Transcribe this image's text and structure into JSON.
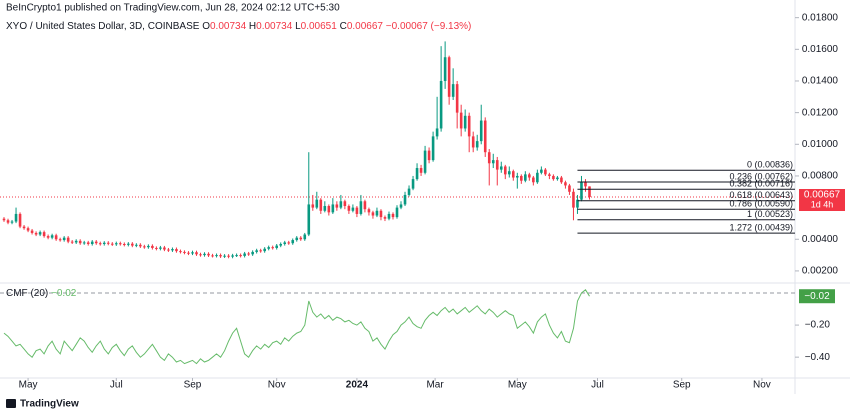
{
  "header": {
    "publisher": "BeInCrypto1 published on TradingView.com, Jun 28, 2024 02:12 UTC+5:30",
    "brand": "TradingView"
  },
  "chart_data": {
    "type": "candlestick",
    "title": "XYO / United States Dollar, 3D, COINBASE",
    "ohlc": [
      {
        "key": "O",
        "text": "0.00734"
      },
      {
        "key": "H",
        "text": "0.00734"
      },
      {
        "key": "L",
        "text": "0.00651"
      },
      {
        "key": "C",
        "text": "0.00667"
      }
    ],
    "change": "−0.00067 (−9.13%)",
    "up_color": "#089981",
    "down_color": "#f23645",
    "xlim": [
      -1,
      196
    ],
    "xticks": [
      {
        "value": 6,
        "label": "May"
      },
      {
        "value": 28,
        "label": "Jul"
      },
      {
        "value": 47,
        "label": "Sep"
      },
      {
        "value": 68,
        "label": "Nov"
      },
      {
        "value": 88,
        "label": "2024"
      },
      {
        "value": 107.5,
        "label": "Mar"
      },
      {
        "value": 128,
        "label": "May"
      },
      {
        "value": 148,
        "label": "Jul"
      },
      {
        "value": 169,
        "label": "Sep"
      },
      {
        "value": 189,
        "label": "Nov"
      }
    ],
    "ylim": [
      0.0013,
      0.0188
    ],
    "yticks": [
      {
        "value": 0.018,
        "label": "0.01800"
      },
      {
        "value": 0.016,
        "label": "0.01600"
      },
      {
        "value": 0.014,
        "label": "0.01400"
      },
      {
        "value": 0.012,
        "label": "0.01200"
      },
      {
        "value": 0.01,
        "label": "0.01000"
      },
      {
        "value": 0.008,
        "label": "0.00800"
      },
      {
        "value": 0.004,
        "label": "0.00400"
      },
      {
        "value": 0.002,
        "label": "0.00200"
      }
    ],
    "open": [
      0.0053,
      0.0052,
      0.00505,
      0.00512,
      0.0056,
      0.0048,
      0.0047,
      0.00455,
      0.0044,
      0.0043,
      0.00445,
      0.0042,
      0.0041,
      0.00425,
      0.004,
      0.00395,
      0.0041,
      0.00385,
      0.0038,
      0.0039,
      0.00375,
      0.0038,
      0.0037,
      0.00385,
      0.00375,
      0.0037,
      0.00378,
      0.00372,
      0.00368,
      0.00375,
      0.0037,
      0.00365,
      0.00372,
      0.0036,
      0.00365,
      0.00355,
      0.0035,
      0.00358,
      0.00345,
      0.0034,
      0.00348,
      0.00335,
      0.0033,
      0.00338,
      0.00325,
      0.0032,
      0.00315,
      0.0031,
      0.00318,
      0.00305,
      0.003,
      0.00308,
      0.00298,
      0.00295,
      0.003,
      0.00292,
      0.00296,
      0.0029,
      0.00298,
      0.003,
      0.00295,
      0.0031,
      0.00305,
      0.0032,
      0.0033,
      0.00325,
      0.0034,
      0.0035,
      0.00345,
      0.0036,
      0.0037,
      0.0038,
      0.00375,
      0.00395,
      0.0041,
      0.004,
      0.0043,
      0.0062,
      0.006,
      0.0065,
      0.0058,
      0.0061,
      0.0057,
      0.0062,
      0.006,
      0.0064,
      0.0061,
      0.0058,
      0.006,
      0.0056,
      0.0064,
      0.0059,
      0.0057,
      0.0055,
      0.0058,
      0.0054,
      0.0053,
      0.0056,
      0.0054,
      0.006,
      0.0062,
      0.0068,
      0.0072,
      0.0078,
      0.0085,
      0.0082,
      0.0096,
      0.009,
      0.0105,
      0.011,
      0.014,
      0.0155,
      0.013,
      0.0138,
      0.012,
      0.011,
      0.0118,
      0.0105,
      0.0098,
      0.0102,
      0.0115,
      0.0095,
      0.0088,
      0.009,
      0.0084,
      0.0086,
      0.0081,
      0.0083,
      0.0079,
      0.008,
      0.0077,
      0.0081,
      0.0079,
      0.0076,
      0.0082,
      0.0084,
      0.0081,
      0.008,
      0.0078,
      0.0079,
      0.0076,
      0.0074,
      0.007,
      0.006,
      0.0065,
      0.0076,
      0.00734
    ],
    "high": [
      0.0054,
      0.0053,
      0.00522,
      0.006,
      0.0057,
      0.0049,
      0.0048,
      0.00465,
      0.0045,
      0.00455,
      0.00455,
      0.0043,
      0.00435,
      0.00435,
      0.0041,
      0.0042,
      0.0042,
      0.00395,
      0.004,
      0.004,
      0.0039,
      0.0039,
      0.00395,
      0.00395,
      0.00385,
      0.00388,
      0.00388,
      0.00382,
      0.00385,
      0.00385,
      0.0038,
      0.00382,
      0.00382,
      0.00375,
      0.00375,
      0.00365,
      0.00368,
      0.00368,
      0.00355,
      0.00358,
      0.00358,
      0.00345,
      0.00348,
      0.00348,
      0.00335,
      0.0033,
      0.00325,
      0.00328,
      0.00328,
      0.00315,
      0.00318,
      0.00318,
      0.00308,
      0.0031,
      0.0031,
      0.00306,
      0.00306,
      0.00308,
      0.0031,
      0.0031,
      0.0032,
      0.0032,
      0.0033,
      0.0034,
      0.0034,
      0.0035,
      0.0036,
      0.0036,
      0.0037,
      0.0038,
      0.0039,
      0.0039,
      0.00405,
      0.0042,
      0.0042,
      0.0044,
      0.0095,
      0.0068,
      0.007,
      0.0066,
      0.0064,
      0.0062,
      0.0066,
      0.0064,
      0.0068,
      0.0065,
      0.0062,
      0.0062,
      0.0061,
      0.0068,
      0.0065,
      0.006,
      0.0058,
      0.006,
      0.0059,
      0.0055,
      0.00575,
      0.0057,
      0.00615,
      0.0064,
      0.007,
      0.0074,
      0.008,
      0.0088,
      0.0087,
      0.0099,
      0.0098,
      0.0108,
      0.013,
      0.0162,
      0.0165,
      0.0156,
      0.0148,
      0.014,
      0.0125,
      0.0122,
      0.012,
      0.0108,
      0.0106,
      0.0125,
      0.0117,
      0.0097,
      0.0094,
      0.0092,
      0.0089,
      0.0087,
      0.0086,
      0.0084,
      0.0082,
      0.0081,
      0.0083,
      0.0082,
      0.008,
      0.0084,
      0.0086,
      0.0085,
      0.0082,
      0.0081,
      0.008,
      0.008,
      0.0077,
      0.0075,
      0.0072,
      0.0068,
      0.008,
      0.0078,
      0.00734
    ],
    "low": [
      0.0051,
      0.00495,
      0.00495,
      0.00502,
      0.0047,
      0.0046,
      0.00445,
      0.0043,
      0.0042,
      0.0042,
      0.0041,
      0.004,
      0.004,
      0.0039,
      0.00385,
      0.00385,
      0.00375,
      0.0037,
      0.0037,
      0.00365,
      0.00365,
      0.0036,
      0.0036,
      0.00365,
      0.0036,
      0.0036,
      0.00362,
      0.00358,
      0.00358,
      0.0036,
      0.00355,
      0.00355,
      0.0035,
      0.0035,
      0.00345,
      0.0034,
      0.0034,
      0.00335,
      0.0033,
      0.0033,
      0.00325,
      0.0032,
      0.0032,
      0.00315,
      0.0031,
      0.00305,
      0.003,
      0.003,
      0.00295,
      0.0029,
      0.0029,
      0.00288,
      0.00285,
      0.00285,
      0.00282,
      0.00282,
      0.0028,
      0.0028,
      0.00288,
      0.00285,
      0.00285,
      0.00295,
      0.00295,
      0.0031,
      0.00315,
      0.00315,
      0.0033,
      0.00335,
      0.00335,
      0.0035,
      0.0036,
      0.00365,
      0.00365,
      0.00385,
      0.0039,
      0.0039,
      0.0042,
      0.0058,
      0.0059,
      0.0056,
      0.0057,
      0.0055,
      0.0056,
      0.0058,
      0.0059,
      0.0059,
      0.0056,
      0.0057,
      0.0054,
      0.0055,
      0.0057,
      0.0055,
      0.0053,
      0.0054,
      0.0052,
      0.00515,
      0.0052,
      0.00525,
      0.0053,
      0.0059,
      0.0061,
      0.0067,
      0.0071,
      0.0077,
      0.008,
      0.0081,
      0.0088,
      0.0089,
      0.0103,
      0.0108,
      0.0135,
      0.0125,
      0.0128,
      0.011,
      0.0105,
      0.0108,
      0.0095,
      0.0095,
      0.0096,
      0.01,
      0.0092,
      0.0074,
      0.0085,
      0.0074,
      0.0082,
      0.0078,
      0.0079,
      0.0077,
      0.0072,
      0.0075,
      0.0076,
      0.0077,
      0.0074,
      0.0075,
      0.0081,
      0.008,
      0.0078,
      0.0077,
      0.0077,
      0.0075,
      0.0072,
      0.0068,
      0.0052,
      0.0056,
      0.0064,
      0.007,
      0.00651
    ],
    "close": [
      0.0052,
      0.00505,
      0.00512,
      0.0056,
      0.0048,
      0.0047,
      0.00455,
      0.0044,
      0.0043,
      0.00445,
      0.0042,
      0.0041,
      0.00425,
      0.004,
      0.00395,
      0.0041,
      0.00385,
      0.0038,
      0.0039,
      0.00375,
      0.0038,
      0.0037,
      0.00385,
      0.00375,
      0.0037,
      0.00378,
      0.00372,
      0.00368,
      0.00375,
      0.0037,
      0.00365,
      0.00372,
      0.0036,
      0.00365,
      0.00355,
      0.0035,
      0.00358,
      0.00345,
      0.0034,
      0.00348,
      0.00335,
      0.0033,
      0.00338,
      0.00325,
      0.0032,
      0.00315,
      0.0031,
      0.00318,
      0.00305,
      0.003,
      0.00308,
      0.00298,
      0.00295,
      0.003,
      0.00292,
      0.00296,
      0.0029,
      0.00298,
      0.003,
      0.00295,
      0.0031,
      0.00305,
      0.0032,
      0.0033,
      0.00325,
      0.0034,
      0.0035,
      0.00345,
      0.0036,
      0.0037,
      0.0038,
      0.00375,
      0.00395,
      0.0041,
      0.004,
      0.0043,
      0.0062,
      0.006,
      0.0065,
      0.0058,
      0.0061,
      0.0057,
      0.0062,
      0.006,
      0.0064,
      0.0061,
      0.0058,
      0.006,
      0.0056,
      0.0064,
      0.0059,
      0.0057,
      0.0055,
      0.0058,
      0.0054,
      0.0053,
      0.0056,
      0.0054,
      0.006,
      0.0062,
      0.0068,
      0.0072,
      0.0078,
      0.0085,
      0.0082,
      0.0096,
      0.009,
      0.0105,
      0.011,
      0.014,
      0.0155,
      0.013,
      0.0138,
      0.012,
      0.011,
      0.0118,
      0.0105,
      0.0098,
      0.0102,
      0.0115,
      0.0095,
      0.0088,
      0.009,
      0.0084,
      0.0086,
      0.0081,
      0.0083,
      0.0079,
      0.008,
      0.0077,
      0.0081,
      0.0079,
      0.0076,
      0.0082,
      0.0084,
      0.0081,
      0.008,
      0.0078,
      0.0079,
      0.0076,
      0.0074,
      0.007,
      0.006,
      0.0065,
      0.0076,
      0.00734,
      0.00667
    ],
    "last_price": {
      "value": 0.00667,
      "label": "0.00667"
    },
    "countdown": "1d 4h",
    "fib_levels": [
      {
        "label": "0 (0.00836)",
        "value": 0.00836
      },
      {
        "label": "0.236 (0.00762)",
        "value": 0.00762
      },
      {
        "label": "0.382 (0.00716)",
        "value": 0.00716
      },
      {
        "label": "0.618 (0.00643)",
        "value": 0.00643
      },
      {
        "label": "0.786 (0.00590)",
        "value": 0.0059
      },
      {
        "label": "1 (0.00523)",
        "value": 0.00523
      },
      {
        "label": "1.272 (0.00439)",
        "value": 0.00439
      }
    ],
    "indicator": {
      "name": "CMF (20)",
      "color": "#66bb6a",
      "value": -0.02,
      "label": "−0.02",
      "ylim": [
        -0.53,
        0.05
      ],
      "yticks": [
        {
          "value": -0.2,
          "label": "−0.20"
        },
        {
          "value": -0.4,
          "label": "−0.40"
        }
      ],
      "values": [
        -0.25,
        -0.27,
        -0.3,
        -0.33,
        -0.32,
        -0.35,
        -0.38,
        -0.4,
        -0.36,
        -0.35,
        -0.38,
        -0.33,
        -0.3,
        -0.35,
        -0.38,
        -0.3,
        -0.33,
        -0.36,
        -0.32,
        -0.28,
        -0.3,
        -0.34,
        -0.37,
        -0.33,
        -0.3,
        -0.35,
        -0.38,
        -0.34,
        -0.32,
        -0.36,
        -0.39,
        -0.35,
        -0.33,
        -0.37,
        -0.4,
        -0.38,
        -0.35,
        -0.32,
        -0.36,
        -0.4,
        -0.42,
        -0.38,
        -0.4,
        -0.43,
        -0.42,
        -0.44,
        -0.43,
        -0.42,
        -0.44,
        -0.41,
        -0.43,
        -0.42,
        -0.4,
        -0.38,
        -0.4,
        -0.36,
        -0.3,
        -0.25,
        -0.22,
        -0.3,
        -0.38,
        -0.4,
        -0.36,
        -0.33,
        -0.35,
        -0.32,
        -0.34,
        -0.31,
        -0.3,
        -0.32,
        -0.28,
        -0.3,
        -0.27,
        -0.25,
        -0.24,
        -0.2,
        -0.05,
        -0.12,
        -0.15,
        -0.13,
        -0.16,
        -0.14,
        -0.17,
        -0.15,
        -0.16,
        -0.18,
        -0.17,
        -0.19,
        -0.2,
        -0.18,
        -0.22,
        -0.24,
        -0.3,
        -0.28,
        -0.32,
        -0.35,
        -0.3,
        -0.26,
        -0.24,
        -0.2,
        -0.18,
        -0.15,
        -0.19,
        -0.21,
        -0.22,
        -0.17,
        -0.14,
        -0.12,
        -0.14,
        -0.11,
        -0.09,
        -0.12,
        -0.1,
        -0.13,
        -0.11,
        -0.09,
        -0.12,
        -0.1,
        -0.08,
        -0.11,
        -0.13,
        -0.1,
        -0.12,
        -0.15,
        -0.13,
        -0.11,
        -0.13,
        -0.14,
        -0.22,
        -0.2,
        -0.18,
        -0.21,
        -0.25,
        -0.18,
        -0.15,
        -0.13,
        -0.2,
        -0.25,
        -0.28,
        -0.24,
        -0.3,
        -0.31,
        -0.22,
        -0.05,
        0.0,
        0.02,
        -0.02
      ]
    }
  }
}
